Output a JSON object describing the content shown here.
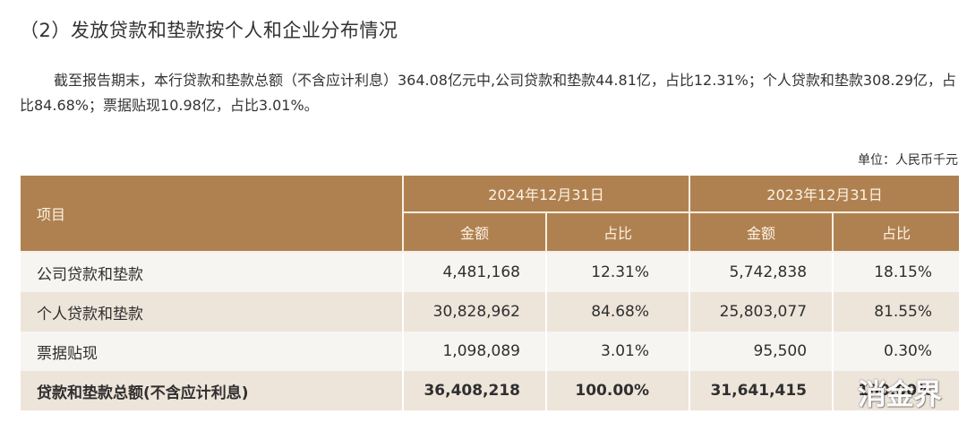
{
  "section": {
    "title": "（2）发放贷款和垫款按个人和企业分布情况",
    "paragraph": "截至报告期末，本行贷款和垫款总额（不含应计利息）364.08亿元中,公司贷款和垫款44.81亿，占比12.31%；个人贷款和垫款308.29亿，占比84.68%；票据贴现10.98亿，占比3.01%。",
    "unit_label": "单位：人民币千元"
  },
  "table": {
    "item_header": "项目",
    "periods": [
      {
        "label": "2024年12月31日",
        "amount_header": "金额",
        "ratio_header": "占比"
      },
      {
        "label": "2023年12月31日",
        "amount_header": "金额",
        "ratio_header": "占比"
      }
    ],
    "rows": [
      {
        "name": "公司贷款和垫款",
        "amount_2024": "4,481,168",
        "ratio_2024": "12.31%",
        "amount_2023": "5,742,838",
        "ratio_2023": "18.15%"
      },
      {
        "name": "个人贷款和垫款",
        "amount_2024": "30,828,962",
        "ratio_2024": "84.68%",
        "amount_2023": "25,803,077",
        "ratio_2023": "81.55%"
      },
      {
        "name": "票据贴现",
        "amount_2024": "1,098,089",
        "ratio_2024": "3.01%",
        "amount_2023": "95,500",
        "ratio_2023": "0.30%"
      },
      {
        "name": "贷款和垫款总额(不含应计利息)",
        "amount_2024": "36,408,218",
        "ratio_2024": "100.00%",
        "amount_2023": "31,641,415",
        "ratio_2023": "100.00%"
      }
    ],
    "colors": {
      "header_bg": "#b08150",
      "header_text": "#fbf3e6",
      "row_light": "#f6f5f1",
      "row_beige": "#ede4da"
    }
  },
  "watermark": {
    "text": "消金界"
  }
}
